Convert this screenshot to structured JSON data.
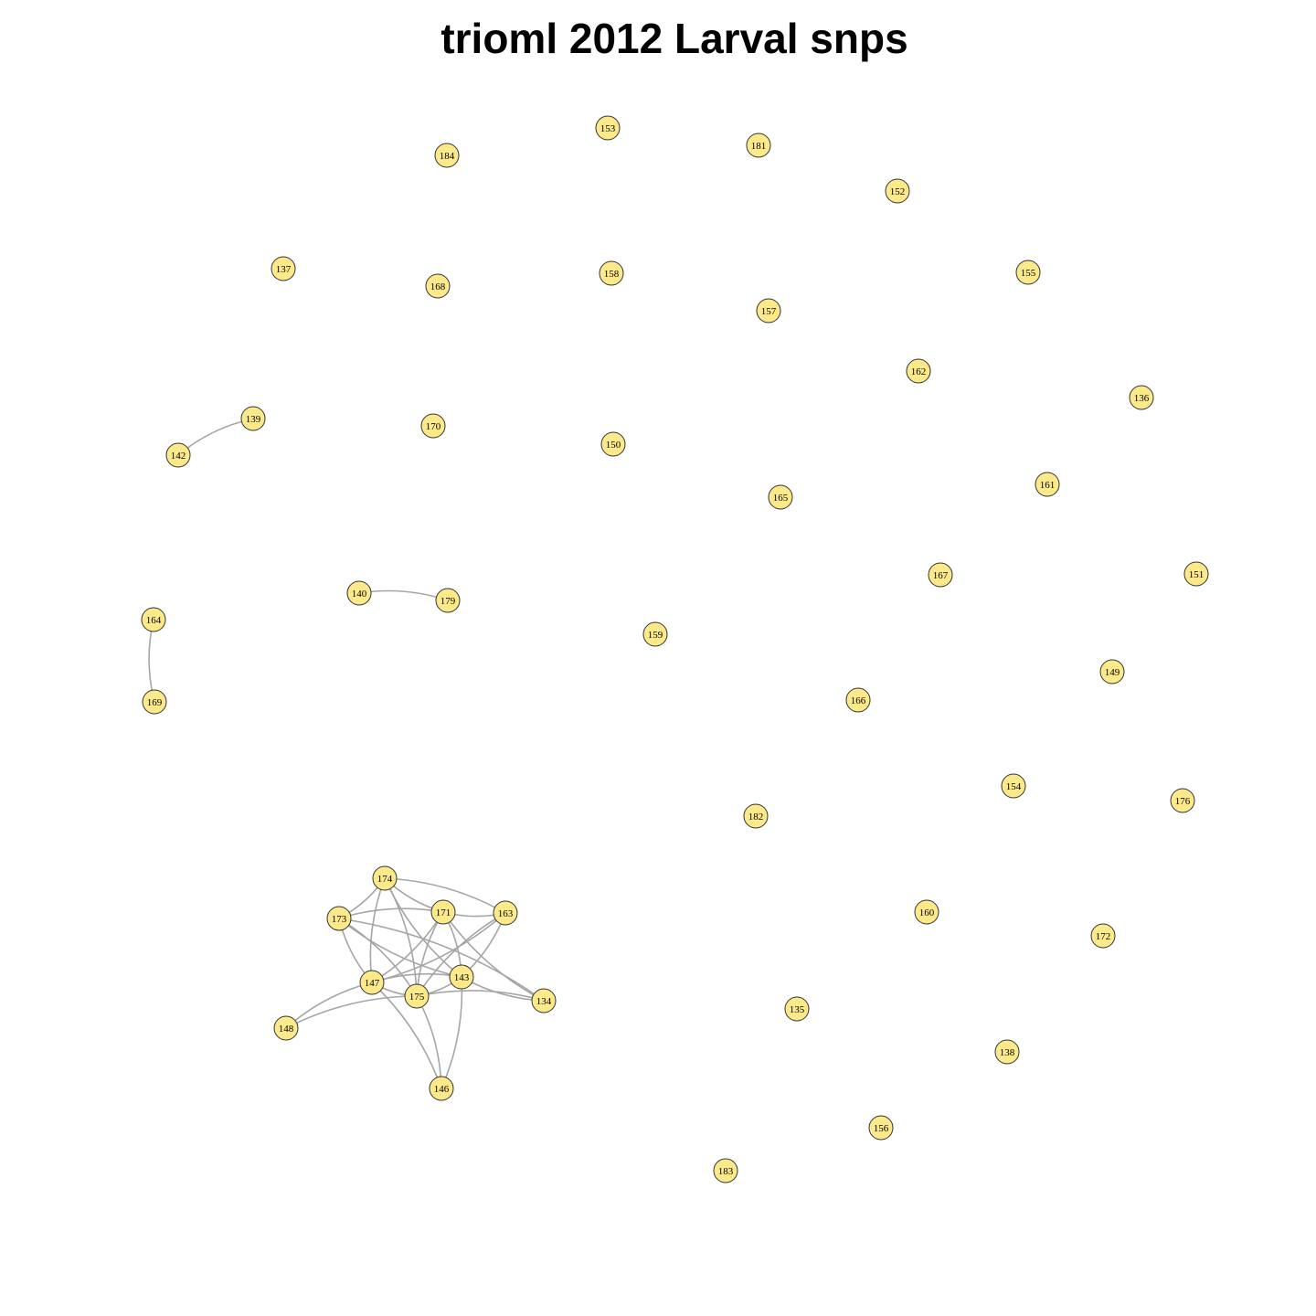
{
  "title": "trioml 2012 Larval snps",
  "style": {
    "node_fill": "#fce98a",
    "node_stroke": "#333333",
    "edge_color": "#a6a6a6"
  },
  "nodes": [
    "153",
    "184",
    "181",
    "152",
    "137",
    "168",
    "158",
    "155",
    "157",
    "162",
    "136",
    "139",
    "142",
    "170",
    "150",
    "161",
    "165",
    "167",
    "151",
    "140",
    "179",
    "164",
    "159",
    "169",
    "149",
    "166",
    "154",
    "176",
    "182",
    "174",
    "171",
    "163",
    "173",
    "160",
    "172",
    "147",
    "143",
    "175",
    "134",
    "148",
    "135",
    "138",
    "146",
    "156",
    "183"
  ],
  "edges": [
    [
      "139",
      "142"
    ],
    [
      "140",
      "179"
    ],
    [
      "164",
      "169"
    ],
    [
      "174",
      "173"
    ],
    [
      "174",
      "171"
    ],
    [
      "174",
      "163"
    ],
    [
      "174",
      "147"
    ],
    [
      "174",
      "175"
    ],
    [
      "174",
      "143"
    ],
    [
      "173",
      "171"
    ],
    [
      "173",
      "147"
    ],
    [
      "173",
      "175"
    ],
    [
      "173",
      "143"
    ],
    [
      "173",
      "134"
    ],
    [
      "171",
      "163"
    ],
    [
      "171",
      "147"
    ],
    [
      "171",
      "175"
    ],
    [
      "171",
      "143"
    ],
    [
      "171",
      "134"
    ],
    [
      "163",
      "147"
    ],
    [
      "163",
      "175"
    ],
    [
      "163",
      "143"
    ],
    [
      "147",
      "175"
    ],
    [
      "147",
      "143"
    ],
    [
      "147",
      "148"
    ],
    [
      "147",
      "146"
    ],
    [
      "175",
      "143"
    ],
    [
      "175",
      "134"
    ],
    [
      "175",
      "148"
    ],
    [
      "175",
      "146"
    ],
    [
      "143",
      "134"
    ],
    [
      "143",
      "146"
    ]
  ]
}
